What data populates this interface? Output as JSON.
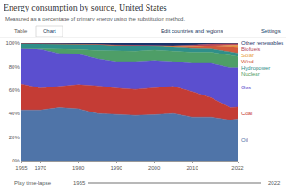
{
  "chart_data": {
    "type": "area",
    "title": "Energy consumption by source, United States",
    "subtitle": "Measured as a percentage of primary energy using the substitution method.",
    "annotations": [
      "Table",
      "Chart",
      "Edit countries and regions",
      "Settings",
      "Play time-lapse",
      "1965",
      "2022"
    ],
    "stacked": true,
    "grid": true,
    "x": [
      1965,
      1970,
      1975,
      1980,
      1985,
      1990,
      1995,
      2000,
      2005,
      2010,
      2015,
      2020,
      2022
    ],
    "xlim": [
      1965,
      2022
    ],
    "xticks": [
      1965,
      1970,
      1980,
      1990,
      2000,
      2010,
      2022
    ],
    "ylim": [
      0,
      100
    ],
    "yticks": [
      {
        "value": 0,
        "label": "0%"
      },
      {
        "value": 20,
        "label": "20%"
      },
      {
        "value": 40,
        "label": "40%"
      },
      {
        "value": 60,
        "label": "60%"
      },
      {
        "value": 80,
        "label": "80%"
      },
      {
        "value": 100,
        "label": "100%"
      }
    ],
    "series": [
      {
        "name": "Oil",
        "color": "#4f74a8",
        "values": [
          43,
          43,
          45,
          44,
          40,
          39,
          38.5,
          39,
          40,
          37,
          37,
          34.5,
          35.5
        ]
      },
      {
        "name": "Coal",
        "color": "#c43c35",
        "values": [
          22,
          18.6,
          18,
          20.5,
          23.5,
          22.5,
          22,
          23,
          23,
          21.5,
          16.5,
          10.5,
          10
        ]
      },
      {
        "name": "Gas",
        "color": "#5b4fcf",
        "values": [
          30.2,
          33,
          28,
          26,
          23,
          22.5,
          23.5,
          23,
          21,
          24,
          29,
          34,
          33.5
        ]
      },
      {
        "name": "Nuclear",
        "color": "#4e9e67",
        "values": [
          0.1,
          0.4,
          3.5,
          4,
          7,
          9.5,
          9,
          9,
          9,
          9.5,
          9.5,
          10.5,
          9.5
        ]
      },
      {
        "name": "Hydropower",
        "color": "#2f8f8a",
        "values": [
          4.5,
          4.7,
          5,
          4.8,
          5.5,
          4.5,
          4.5,
          3.5,
          3.3,
          3.2,
          2.9,
          3.2,
          2.8
        ]
      },
      {
        "name": "Wind",
        "color": "#d25a3c",
        "values": [
          0,
          0,
          0,
          0,
          0,
          0.1,
          0.1,
          0.1,
          0.4,
          1.4,
          2.3,
          4,
          4.7
        ]
      },
      {
        "name": "Solar",
        "color": "#e8a03a",
        "values": [
          0,
          0,
          0,
          0,
          0,
          0,
          0,
          0,
          0,
          0.1,
          0.5,
          1.5,
          2.2
        ]
      },
      {
        "name": "Biofuels",
        "color": "#b8475a",
        "values": [
          0,
          0,
          0,
          0,
          0,
          0.2,
          0.4,
          0.4,
          1,
          1.6,
          1.6,
          1.3,
          1.3
        ]
      },
      {
        "name": "Other renewables",
        "color": "#18336b",
        "values": [
          0.2,
          0.3,
          0.5,
          0.7,
          1,
          1.7,
          2,
          2,
          2.3,
          1.7,
          0.7,
          0.5,
          0.5
        ]
      }
    ]
  }
}
